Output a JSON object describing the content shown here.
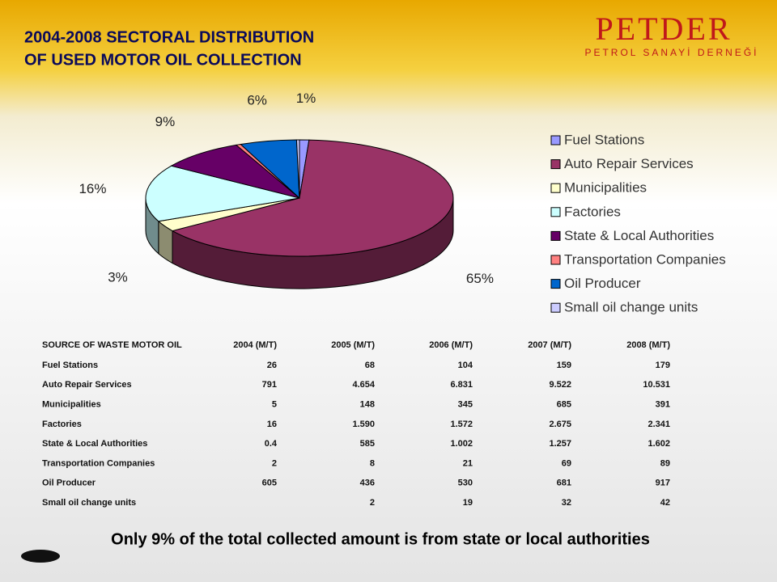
{
  "title": [
    "2004-2008 SECTORAL DISTRIBUTION",
    "OF USED MOTOR OIL COLLECTION"
  ],
  "logo": {
    "name": "PETDER",
    "subtitle": "PETROL SANAYİ DERNEĞİ"
  },
  "chart_data": {
    "type": "pie",
    "categories": [
      "Fuel Stations",
      "Auto Repair Services",
      "Municipalities",
      "Factories",
      "State & Local Authorities",
      "Transportation Companies",
      "Oil Producer",
      "Small oil change units"
    ],
    "values": [
      1,
      65,
      3,
      16,
      9,
      0.5,
      6,
      0.3
    ],
    "value_labels": [
      "1%",
      "65%",
      "3%",
      "16%",
      "9%",
      null,
      "6%",
      null
    ],
    "colors": [
      "#9999ff",
      "#993366",
      "#ffffcc",
      "#ccffff",
      "#660066",
      "#ff8080",
      "#0066cc",
      "#ccccff"
    ],
    "legend": "right"
  },
  "table": {
    "header": [
      "SOURCE OF WASTE MOTOR OIL",
      "2004 (M/T)",
      "2005 (M/T)",
      "2006 (M/T)",
      "2007 (M/T)",
      "2008 (M/T)"
    ],
    "rows": [
      [
        "Fuel Stations",
        "26",
        "68",
        "104",
        "159",
        "179"
      ],
      [
        "Auto Repair Services",
        "791",
        "4.654",
        "6.831",
        "9.522",
        "10.531"
      ],
      [
        "Municipalities",
        "5",
        "148",
        "345",
        "685",
        "391"
      ],
      [
        "Factories",
        "16",
        "1.590",
        "1.572",
        "2.675",
        "2.341"
      ],
      [
        "State & Local Authorities",
        "0.4",
        "585",
        "1.002",
        "1.257",
        "1.602"
      ],
      [
        "Transportation Companies",
        "2",
        "8",
        "21",
        "69",
        "89"
      ],
      [
        "Oil Producer",
        "605",
        "436",
        "530",
        "681",
        "917"
      ],
      [
        "Small oil change units",
        null,
        "2",
        "19",
        "32",
        "42"
      ]
    ]
  },
  "footer": "Only 9% of the total collected amount is from state or local authorities"
}
